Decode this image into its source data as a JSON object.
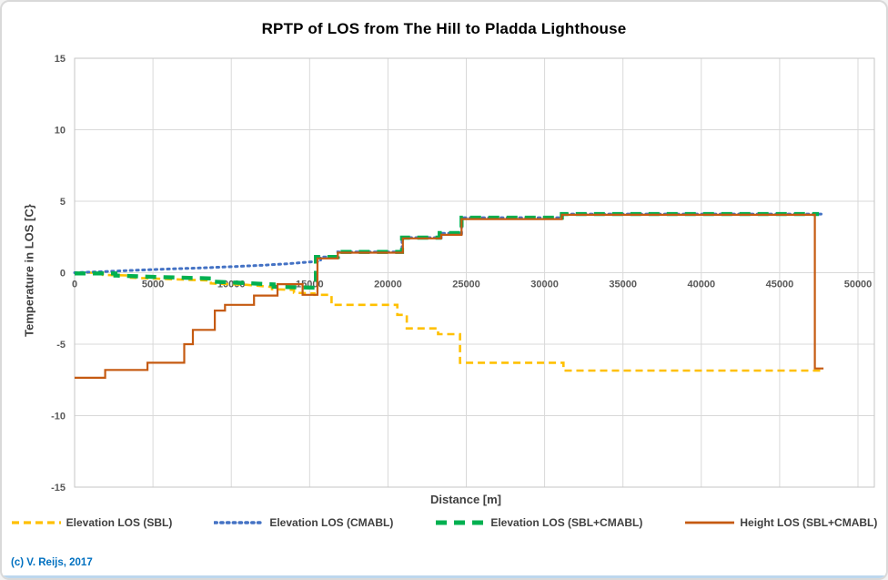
{
  "copyright": "(c) V. Reijs, 2017",
  "chart_data": {
    "type": "line",
    "title": "RPTP of LOS from The Hill to Pladda Lighthouse",
    "xlabel": "Distance [m]",
    "ylabel": "Temperature in LOS [C}",
    "xlim": [
      0,
      50000
    ],
    "ylim": [
      -15,
      15
    ],
    "x_ticks": [
      0,
      5000,
      10000,
      15000,
      20000,
      25000,
      30000,
      35000,
      40000,
      45000,
      50000
    ],
    "y_ticks": [
      15,
      10,
      5,
      0,
      -5,
      -10,
      -15
    ],
    "grid": true,
    "legend_position": "bottom",
    "series": [
      {
        "name": "Elevation LOS (SBL)",
        "color": "#FFC000",
        "style": "dashed",
        "points": [
          [
            0,
            0
          ],
          [
            1800,
            0
          ],
          [
            1800,
            -0.15
          ],
          [
            3600,
            -0.2
          ],
          [
            3600,
            -0.35
          ],
          [
            7400,
            -0.5
          ],
          [
            8700,
            -0.55
          ],
          [
            8700,
            -0.75
          ],
          [
            11000,
            -0.85
          ],
          [
            12600,
            -1.0
          ],
          [
            12600,
            -1.15
          ],
          [
            14000,
            -1.2
          ],
          [
            14000,
            -1.4
          ],
          [
            15300,
            -1.45
          ],
          [
            15300,
            -1.55
          ],
          [
            16400,
            -1.55
          ],
          [
            16400,
            -2.25
          ],
          [
            20600,
            -2.25
          ],
          [
            20600,
            -2.95
          ],
          [
            21200,
            -2.95
          ],
          [
            21200,
            -3.9
          ],
          [
            23200,
            -3.9
          ],
          [
            23200,
            -4.3
          ],
          [
            24600,
            -4.3
          ],
          [
            24600,
            -6.3
          ],
          [
            31200,
            -6.3
          ],
          [
            31200,
            -6.85
          ],
          [
            47700,
            -6.85
          ]
        ]
      },
      {
        "name": "Elevation LOS (CMABL)",
        "color": "#4472C4",
        "style": "dotted",
        "points": [
          [
            0,
            0
          ],
          [
            2000,
            0.08
          ],
          [
            4000,
            0.18
          ],
          [
            6000,
            0.26
          ],
          [
            8000,
            0.33
          ],
          [
            10000,
            0.42
          ],
          [
            12000,
            0.52
          ],
          [
            13500,
            0.62
          ],
          [
            15000,
            0.75
          ],
          [
            15700,
            0.8
          ],
          [
            15700,
            1.1
          ],
          [
            16800,
            1.1
          ],
          [
            16800,
            1.45
          ],
          [
            20900,
            1.45
          ],
          [
            20900,
            2.45
          ],
          [
            23400,
            2.45
          ],
          [
            23400,
            2.75
          ],
          [
            24700,
            2.75
          ],
          [
            24700,
            3.85
          ],
          [
            31100,
            3.85
          ],
          [
            31100,
            4.1
          ],
          [
            47700,
            4.1
          ]
        ]
      },
      {
        "name": "Elevation LOS (SBL+CMABL)",
        "color": "#00B050",
        "style": "long-dash",
        "points": [
          [
            0,
            -0.05
          ],
          [
            2600,
            -0.05
          ],
          [
            2600,
            -0.2
          ],
          [
            5200,
            -0.3
          ],
          [
            8700,
            -0.4
          ],
          [
            8700,
            -0.62
          ],
          [
            10400,
            -0.7
          ],
          [
            12700,
            -0.82
          ],
          [
            12700,
            -0.98
          ],
          [
            15400,
            -1.05
          ],
          [
            15400,
            1.1
          ],
          [
            16800,
            1.1
          ],
          [
            16800,
            1.45
          ],
          [
            20900,
            1.45
          ],
          [
            20900,
            2.45
          ],
          [
            23300,
            2.45
          ],
          [
            23300,
            2.78
          ],
          [
            24700,
            2.78
          ],
          [
            24700,
            3.85
          ],
          [
            31100,
            3.85
          ],
          [
            31100,
            4.1
          ],
          [
            47500,
            4.1
          ]
        ]
      },
      {
        "name": "Height LOS (SBL+CMABL)",
        "color": "#C55A11",
        "style": "solid",
        "points": [
          [
            0,
            -7.35
          ],
          [
            1950,
            -7.35
          ],
          [
            1950,
            -6.8
          ],
          [
            4650,
            -6.8
          ],
          [
            4650,
            -6.3
          ],
          [
            7000,
            -6.3
          ],
          [
            7000,
            -5.0
          ],
          [
            7550,
            -5.0
          ],
          [
            7550,
            -4.0
          ],
          [
            8950,
            -4.0
          ],
          [
            8950,
            -2.65
          ],
          [
            9600,
            -2.65
          ],
          [
            9600,
            -2.25
          ],
          [
            11450,
            -2.25
          ],
          [
            11450,
            -1.6
          ],
          [
            12950,
            -1.6
          ],
          [
            12950,
            -0.8
          ],
          [
            14550,
            -0.8
          ],
          [
            14550,
            -1.55
          ],
          [
            15500,
            -1.55
          ],
          [
            15500,
            1.0
          ],
          [
            16800,
            1.0
          ],
          [
            16800,
            1.4
          ],
          [
            20950,
            1.4
          ],
          [
            20950,
            2.4
          ],
          [
            23400,
            2.4
          ],
          [
            23400,
            2.65
          ],
          [
            24700,
            2.65
          ],
          [
            24700,
            3.75
          ],
          [
            31100,
            3.75
          ],
          [
            31100,
            4.05
          ],
          [
            47250,
            4.05
          ],
          [
            47250,
            -6.7
          ],
          [
            47800,
            -6.7
          ]
        ]
      }
    ]
  },
  "colors": {
    "grid": "#D9D9D9",
    "plot_border": "#C6C6C6",
    "tick_text": "#595959",
    "axis_title_text": "#404040",
    "legend_text": "#404040",
    "copyright_text": "#0070C0",
    "frame_border": "#D9D9D9",
    "bottom_edge": "#BDD7EE"
  }
}
